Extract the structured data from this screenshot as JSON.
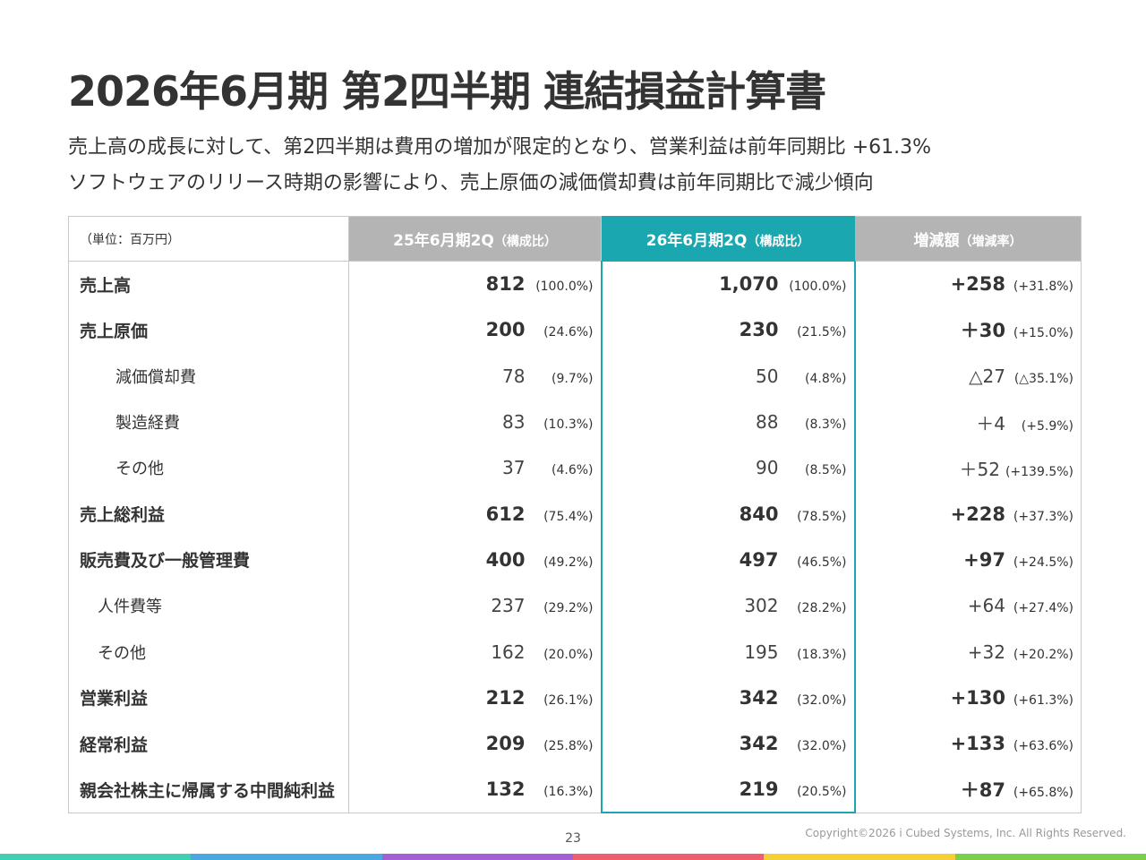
{
  "title": "2026年6月期 第2四半期 連結損益計算書",
  "subtitle_lines": [
    "売上高の成長に対して、第2四半期は費用の増加が限定的となり、営業利益は前年同期比 +61.3%",
    "ソフトウェアのリリース時期の影響により、売上原価の減価償却費は前年同期比で減少傾向"
  ],
  "table": {
    "unit_label": "（単位：百万円）",
    "headers": {
      "prev": {
        "main": "25年6月期2Q",
        "sub": "（構成比）"
      },
      "curr": {
        "main": "26年6月期2Q",
        "sub": "（構成比）"
      },
      "diff": {
        "main": "増減額",
        "sub": "（増減率）"
      }
    },
    "rows": [
      {
        "label": "売上高",
        "prev": "812",
        "prev_pct": "(100.0%)",
        "curr": "1,070",
        "curr_pct": "(100.0%)",
        "diff": "+258",
        "diff_pct": "(+31.8%)"
      },
      {
        "label": "売上原価",
        "prev": "200",
        "prev_pct": "(24.6%)",
        "curr": "230",
        "curr_pct": "(21.5%)",
        "diff": "＋30",
        "diff_pct": "(+15.0%)"
      },
      {
        "label": "減価償却費",
        "prev": "78",
        "prev_pct": "(9.7%)",
        "curr": "50",
        "curr_pct": "(4.8%)",
        "diff": "△27",
        "diff_pct": "(△35.1%)"
      },
      {
        "label": "製造経費",
        "prev": "83",
        "prev_pct": "(10.3%)",
        "curr": "88",
        "curr_pct": "(8.3%)",
        "diff": "＋4",
        "diff_pct": "(+5.9%)"
      },
      {
        "label": "その他",
        "prev": "37",
        "prev_pct": "(4.6%)",
        "curr": "90",
        "curr_pct": "(8.5%)",
        "diff": "＋52",
        "diff_pct": "(+139.5%)"
      },
      {
        "label": "売上総利益",
        "prev": "612",
        "prev_pct": "(75.4%)",
        "curr": "840",
        "curr_pct": "(78.5%)",
        "diff": "+228",
        "diff_pct": "(+37.3%)"
      },
      {
        "label": "販売費及び一般管理費",
        "prev": "400",
        "prev_pct": "(49.2%)",
        "curr": "497",
        "curr_pct": "(46.5%)",
        "diff": "+97",
        "diff_pct": "(+24.5%)"
      },
      {
        "label": "人件費等",
        "prev": "237",
        "prev_pct": "(29.2%)",
        "curr": "302",
        "curr_pct": "(28.2%)",
        "diff": "+64",
        "diff_pct": "(+27.4%)"
      },
      {
        "label": "その他",
        "prev": "162",
        "prev_pct": "(20.0%)",
        "curr": "195",
        "curr_pct": "(18.3%)",
        "diff": "+32",
        "diff_pct": "(+20.2%)"
      },
      {
        "label": "営業利益",
        "prev": "212",
        "prev_pct": "(26.1%)",
        "curr": "342",
        "curr_pct": "(32.0%)",
        "diff": "+130",
        "diff_pct": "(+61.3%)"
      },
      {
        "label": "経常利益",
        "prev": "209",
        "prev_pct": "(25.8%)",
        "curr": "342",
        "curr_pct": "(32.0%)",
        "diff": "+133",
        "diff_pct": "(+63.6%)"
      },
      {
        "label": "親会社株主に帰属する中間純利益",
        "prev": "132",
        "prev_pct": "(16.3%)",
        "curr": "219",
        "curr_pct": "(20.5%)",
        "diff": "＋87",
        "diff_pct": "(+65.8%)"
      }
    ]
  },
  "footer": {
    "page_number": "23",
    "copyright": "Copyright©2026 i Cubed Systems, Inc. All Rights Reserved."
  },
  "colors": {
    "accent": "#1aa7b0",
    "header_gray": "#b4b4b4",
    "bottom_bar": [
      "#3ecfb5",
      "#4aa8e0",
      "#a25fd6",
      "#ee5e6e",
      "#f4d035",
      "#7bcf4a"
    ]
  }
}
